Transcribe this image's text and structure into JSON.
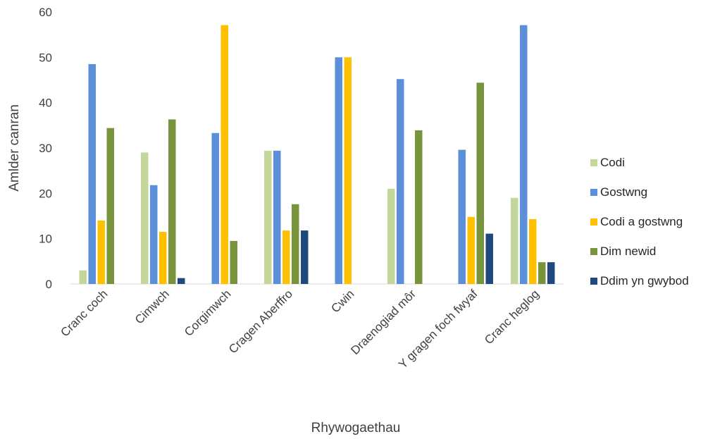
{
  "chart_data": {
    "type": "bar",
    "title": "",
    "xlabel": "Rhywogaethau",
    "ylabel": "Amlder canran",
    "ylim": [
      0,
      60
    ],
    "yticks": [
      0,
      10,
      20,
      30,
      40,
      50,
      60
    ],
    "grid": false,
    "legend_position": "right",
    "categories": [
      "Cranc coch",
      "Cimwch",
      "Corgimwch",
      "Cragen Aberffro",
      "Cwin",
      "Draenogiad môr",
      "Y gragen foch fwyaf",
      "Cranc heglog"
    ],
    "series": [
      {
        "name": "Codi",
        "color": "#c4d79b",
        "values": [
          3,
          29,
          0,
          29.4,
          0,
          21,
          0,
          19
        ]
      },
      {
        "name": "Gostwng",
        "color": "#5b8fd9",
        "values": [
          48.5,
          21.8,
          33.3,
          29.4,
          50,
          45.2,
          29.6,
          57.1
        ]
      },
      {
        "name": "Codi a gostwng",
        "color": "#ffc000",
        "values": [
          14,
          11.5,
          57.1,
          11.8,
          50,
          0,
          14.8,
          14.3
        ]
      },
      {
        "name": "Dim newid",
        "color": "#77933c",
        "values": [
          34.4,
          36.3,
          9.5,
          17.6,
          0,
          33.9,
          44.4,
          4.8
        ]
      },
      {
        "name": "Ddim yn gwybod",
        "color": "#1f497d",
        "values": [
          0,
          1.3,
          0,
          11.8,
          0,
          0,
          11.1,
          4.8
        ]
      }
    ]
  }
}
